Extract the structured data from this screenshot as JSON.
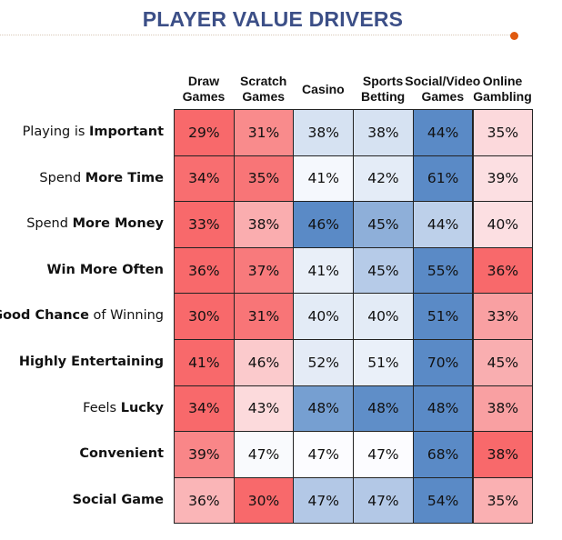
{
  "title": "PLAYER VALUE DRIVERS",
  "accent_color": "#e05a10",
  "chart_data": {
    "type": "heatmap",
    "title": "PLAYER VALUE DRIVERS",
    "columns": [
      "Draw Games",
      "Scratch Games",
      "Casino",
      "Sports Betting",
      "Social/Video Games",
      "Online Gambling"
    ],
    "column_lines": [
      [
        "Draw",
        "Games"
      ],
      [
        "Scratch",
        "Games"
      ],
      [
        "Casino"
      ],
      [
        "Sports",
        "Betting"
      ],
      [
        "Social/Video",
        "Games"
      ],
      [
        "Online",
        "Gambling"
      ]
    ],
    "rows": [
      {
        "label": [
          [
            "Playing is ",
            false
          ],
          [
            "Important",
            true
          ]
        ],
        "values": [
          "29%",
          "31%",
          "38%",
          "38%",
          "44%",
          "35%"
        ],
        "colors": [
          "#f8696b",
          "#f98b8c",
          "#d6e2f2",
          "#d6e2f2",
          "#5a8ac6",
          "#fcd9dc"
        ]
      },
      {
        "label": [
          [
            "Spend ",
            false
          ],
          [
            "More Time",
            true
          ]
        ],
        "values": [
          "34%",
          "35%",
          "41%",
          "42%",
          "61%",
          "39%"
        ],
        "colors": [
          "#f86e70",
          "#f87577",
          "#f5f8fd",
          "#e4ecf7",
          "#5a8ac6",
          "#fcdfe2"
        ]
      },
      {
        "label": [
          [
            "Spend ",
            false
          ],
          [
            "More Money",
            true
          ]
        ],
        "values": [
          "33%",
          "38%",
          "46%",
          "45%",
          "44%",
          "40%"
        ],
        "colors": [
          "#f8696b",
          "#faadaf",
          "#5a8ac6",
          "#8eafd9",
          "#bdd0ea",
          "#fcdfe2"
        ]
      },
      {
        "label": [
          [
            "Win More Often",
            true
          ]
        ],
        "values": [
          "36%",
          "37%",
          "41%",
          "45%",
          "55%",
          "36%"
        ],
        "colors": [
          "#f8696b",
          "#f87a7c",
          "#e9eff8",
          "#b6cbe8",
          "#5a8ac6",
          "#f8696b"
        ]
      },
      {
        "label": [
          [
            "Good Chance",
            true
          ],
          [
            " of Winning",
            false
          ]
        ],
        "values": [
          "30%",
          "31%",
          "40%",
          "40%",
          "51%",
          "33%"
        ],
        "colors": [
          "#f8696b",
          "#f87577",
          "#e3ebf6",
          "#e3ebf6",
          "#5a8ac6",
          "#f9a0a2"
        ]
      },
      {
        "label": [
          [
            "Highly Entertaining",
            true
          ]
        ],
        "values": [
          "41%",
          "46%",
          "52%",
          "51%",
          "70%",
          "45%"
        ],
        "colors": [
          "#f8696b",
          "#fbcacc",
          "#e4ebf6",
          "#eaf0f9",
          "#5a8ac6",
          "#f9aeb0"
        ]
      },
      {
        "label": [
          [
            "Feels ",
            false
          ],
          [
            "Lucky",
            true
          ]
        ],
        "values": [
          "34%",
          "43%",
          "48%",
          "48%",
          "48%",
          "38%"
        ],
        "colors": [
          "#f8696b",
          "#fcdadc",
          "#769fd1",
          "#5f8ec8",
          "#5a8ac6",
          "#f9a0a2"
        ]
      },
      {
        "label": [
          [
            "Convenient",
            true
          ]
        ],
        "values": [
          "39%",
          "47%",
          "47%",
          "47%",
          "68%",
          "38%"
        ],
        "colors": [
          "#f98688",
          "#f9fafd",
          "#fcfcff",
          "#fcfcff",
          "#5a8ac6",
          "#f8696b"
        ]
      },
      {
        "label": [
          [
            "Social Game",
            true
          ]
        ],
        "values": [
          "36%",
          "30%",
          "47%",
          "47%",
          "54%",
          "35%"
        ],
        "colors": [
          "#fab5b7",
          "#f8696b",
          "#b3c8e6",
          "#b3c8e6",
          "#5a8ac6",
          "#fab0b2"
        ]
      }
    ]
  }
}
